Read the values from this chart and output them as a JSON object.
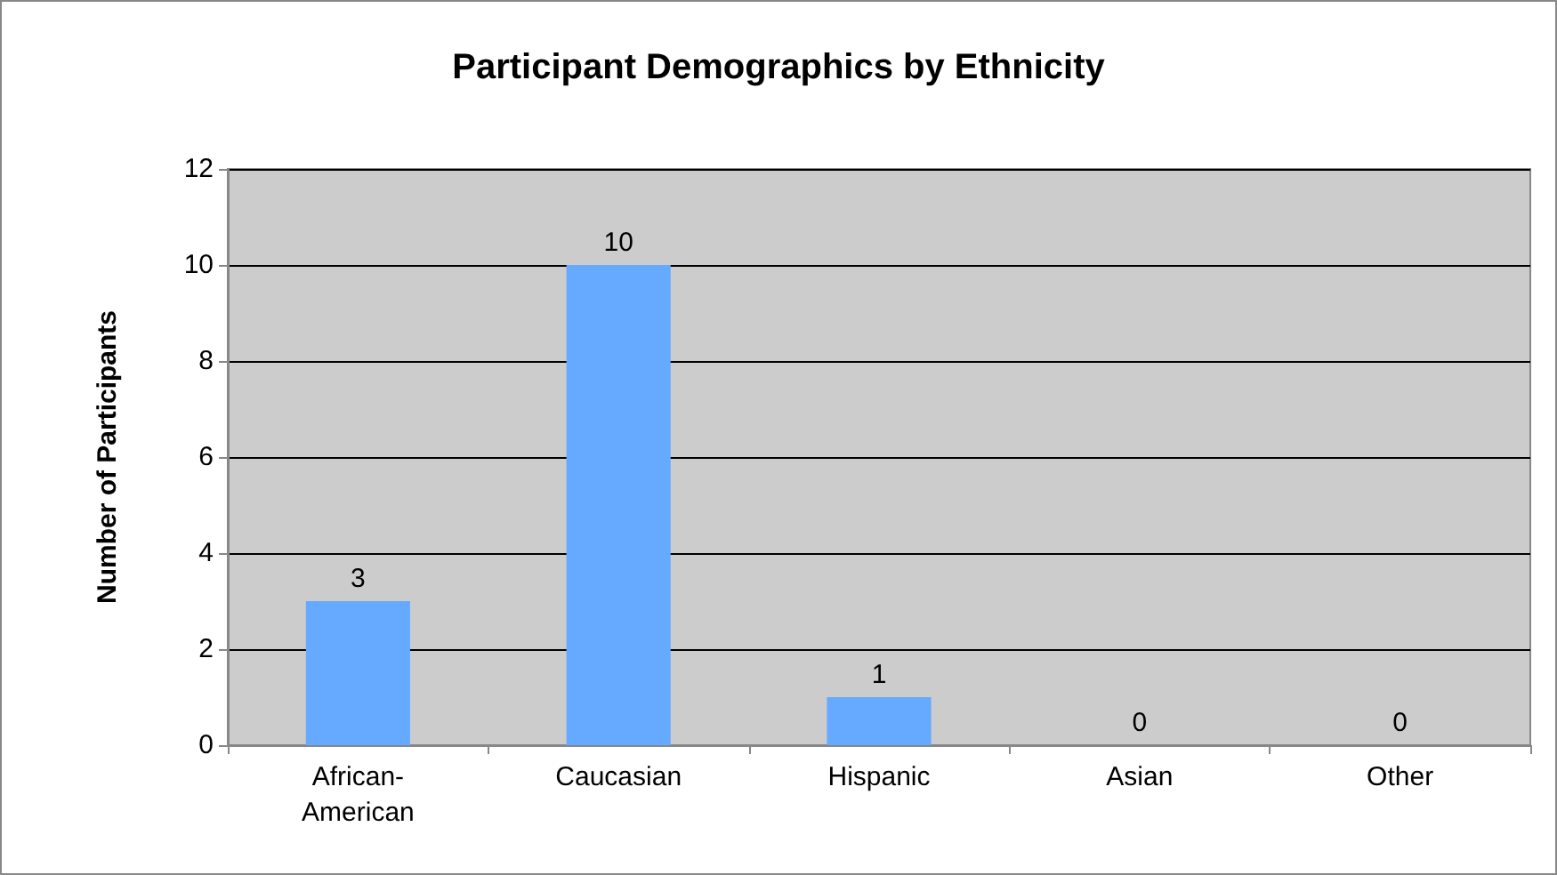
{
  "chart_data": {
    "type": "bar",
    "title": "Participant Demographics by Ethnicity",
    "ylabel": "Number of Participants",
    "categories": [
      "African-\nAmerican",
      "Caucasian",
      "Hispanic",
      "Asian",
      "Other"
    ],
    "values": [
      3,
      10,
      1,
      0,
      0
    ],
    "color": "#66aaff",
    "ylim": [
      0,
      12
    ],
    "yticks": [
      0,
      2,
      4,
      6,
      8,
      10,
      12
    ],
    "grid": "y",
    "data_labels": true
  }
}
